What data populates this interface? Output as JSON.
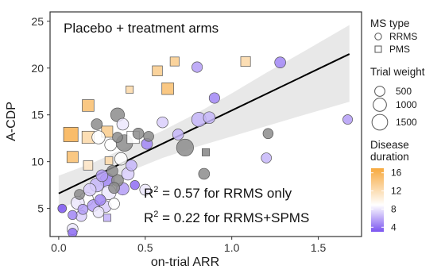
{
  "chart_data": {
    "type": "scatter",
    "title": "",
    "panel_label": "Placebo + treatment arms",
    "xlabel": "on-trial ARR",
    "ylabel": "A-CDP",
    "xlim": [
      -0.05,
      1.75
    ],
    "ylim": [
      2,
      26
    ],
    "x_ticks": [
      0.0,
      0.5,
      1.0,
      1.5
    ],
    "x_tick_labels": [
      "0.0",
      "0.5",
      "1.0",
      "1.5"
    ],
    "y_ticks": [
      5,
      10,
      15,
      20,
      25
    ],
    "y_tick_labels": [
      "5",
      "10",
      "15",
      "20",
      "25"
    ],
    "grid": false,
    "colors": {
      "duration_low": "#7b55f0",
      "duration_mid": "#ffffff",
      "duration_high": "#f7a93e",
      "no_duration": "#8c8c8c",
      "fit_line": "#000000",
      "confidence_band": "#e8e8e8"
    },
    "fit_line": {
      "x": [
        0.0,
        1.68
      ],
      "y": [
        6.6,
        21.5
      ]
    },
    "confidence_band": {
      "x": [
        0.0,
        0.2,
        0.4,
        0.6,
        0.8,
        1.0,
        1.2,
        1.4,
        1.68
      ],
      "upper": [
        8.5,
        9.9,
        11.6,
        13.3,
        15.2,
        17.3,
        19.5,
        21.6,
        24.6
      ],
      "lower": [
        4.7,
        7.0,
        8.9,
        10.4,
        11.6,
        12.7,
        13.8,
        14.9,
        16.4
      ]
    },
    "annotations": [
      {
        "prefix": "R",
        "sup": "2",
        "text": " = 0.57 for RRMS only"
      },
      {
        "prefix": "R",
        "sup": "2",
        "text": " = 0.22  for RRMS+SPMS"
      }
    ],
    "legend": {
      "placement": "right",
      "shape_title": "MS type",
      "shape_items": [
        {
          "label": "RRMS",
          "shape": "circle"
        },
        {
          "label": "PMS",
          "shape": "square"
        }
      ],
      "size_title": "Trial weight",
      "size_items": [
        {
          "label": "500",
          "weight": 500
        },
        {
          "label": "1000",
          "weight": 1000
        },
        {
          "label": "1500",
          "weight": 1500
        }
      ],
      "color_title": "Disease\nduration",
      "color_ticks": [
        {
          "label": "16",
          "value": 16
        },
        {
          "label": "12",
          "value": 12
        },
        {
          "label": "8",
          "value": 8
        },
        {
          "label": "4",
          "value": 4
        }
      ],
      "color_range": [
        3,
        17
      ]
    },
    "points": [
      {
        "x": 0.07,
        "y": 12.9,
        "shape": "square",
        "weight": 1500,
        "duration": 16
      },
      {
        "x": 0.08,
        "y": 10.5,
        "shape": "square",
        "weight": 800,
        "duration": 15
      },
      {
        "x": 0.17,
        "y": 16.0,
        "shape": "square",
        "weight": 900,
        "duration": 15
      },
      {
        "x": 0.17,
        "y": 12.6,
        "shape": "square",
        "weight": 1000,
        "duration": 13
      },
      {
        "x": 0.28,
        "y": 13.2,
        "shape": "square",
        "weight": 800,
        "duration": 14
      },
      {
        "x": 0.17,
        "y": 9.6,
        "shape": "square",
        "weight": 500,
        "duration": 12
      },
      {
        "x": 0.29,
        "y": 10.1,
        "shape": "square",
        "weight": 300,
        "duration": 13
      },
      {
        "x": 0.41,
        "y": 17.7,
        "shape": "square",
        "weight": 250,
        "duration": 13
      },
      {
        "x": 0.43,
        "y": 12.6,
        "shape": "square",
        "weight": 1000,
        "duration": 10
      },
      {
        "x": 0.57,
        "y": 19.7,
        "shape": "square",
        "weight": 600,
        "duration": 14
      },
      {
        "x": 0.63,
        "y": 17.8,
        "shape": "square",
        "weight": 900,
        "duration": 15
      },
      {
        "x": 0.67,
        "y": 20.7,
        "shape": "square",
        "weight": 450,
        "duration": 14
      },
      {
        "x": 1.08,
        "y": 20.7,
        "shape": "square",
        "weight": 550,
        "duration": 13
      },
      {
        "x": 0.85,
        "y": 11.0,
        "shape": "square",
        "weight": 250,
        "duration": null
      },
      {
        "x": 0.28,
        "y": 4.0,
        "shape": "square",
        "weight": 250,
        "duration": 7
      },
      {
        "x": 0.23,
        "y": 12.6,
        "shape": "circle",
        "weight": 800,
        "duration": 10
      },
      {
        "x": 0.22,
        "y": 14.0,
        "shape": "circle",
        "weight": 500,
        "duration": null
      },
      {
        "x": 0.34,
        "y": 15.0,
        "shape": "circle",
        "weight": 900,
        "duration": null
      },
      {
        "x": 0.37,
        "y": 14.0,
        "shape": "circle",
        "weight": 600,
        "duration": 9
      },
      {
        "x": 0.38,
        "y": 12.0,
        "shape": "circle",
        "weight": 1400,
        "duration": null
      },
      {
        "x": 0.34,
        "y": 12.6,
        "shape": "circle",
        "weight": 400,
        "duration": null
      },
      {
        "x": 0.3,
        "y": 11.8,
        "shape": "circle",
        "weight": 600,
        "duration": 10
      },
      {
        "x": 0.46,
        "y": 13.0,
        "shape": "circle",
        "weight": 500,
        "duration": null
      },
      {
        "x": 0.52,
        "y": 12.7,
        "shape": "circle",
        "weight": 400,
        "duration": null
      },
      {
        "x": 0.6,
        "y": 14.2,
        "shape": "circle",
        "weight": 500,
        "duration": 8
      },
      {
        "x": 0.73,
        "y": 11.5,
        "shape": "circle",
        "weight": 1500,
        "duration": null
      },
      {
        "x": 0.81,
        "y": 14.5,
        "shape": "circle",
        "weight": 1000,
        "duration": 7
      },
      {
        "x": 0.87,
        "y": 14.7,
        "shape": "circle",
        "weight": 600,
        "duration": 7
      },
      {
        "x": 0.69,
        "y": 12.9,
        "shape": "circle",
        "weight": 500,
        "duration": 7
      },
      {
        "x": 0.8,
        "y": 20.1,
        "shape": "circle",
        "weight": 450,
        "duration": 6
      },
      {
        "x": 0.9,
        "y": 16.8,
        "shape": "circle",
        "weight": 450,
        "duration": 5
      },
      {
        "x": 1.21,
        "y": 13.0,
        "shape": "circle",
        "weight": 400,
        "duration": null
      },
      {
        "x": 1.28,
        "y": 20.6,
        "shape": "circle",
        "weight": 500,
        "duration": 5
      },
      {
        "x": 1.2,
        "y": 10.4,
        "shape": "circle",
        "weight": 400,
        "duration": 7
      },
      {
        "x": 1.67,
        "y": 14.5,
        "shape": "circle",
        "weight": 350,
        "duration": 6
      },
      {
        "x": 0.51,
        "y": 11.9,
        "shape": "circle",
        "weight": 500,
        "duration": 5
      },
      {
        "x": 0.36,
        "y": 10.3,
        "shape": "circle",
        "weight": 700,
        "duration": 10
      },
      {
        "x": 0.34,
        "y": 8.0,
        "shape": "circle",
        "weight": 600,
        "duration": null
      },
      {
        "x": 0.4,
        "y": 8.7,
        "shape": "circle",
        "weight": 700,
        "duration": 8
      },
      {
        "x": 0.31,
        "y": 9.0,
        "shape": "circle",
        "weight": 500,
        "duration": null
      },
      {
        "x": 0.42,
        "y": 9.6,
        "shape": "circle",
        "weight": 500,
        "duration": 7
      },
      {
        "x": 0.25,
        "y": 8.5,
        "shape": "circle",
        "weight": 600,
        "duration": 6
      },
      {
        "x": 0.28,
        "y": 8.0,
        "shape": "circle",
        "weight": 1000,
        "duration": 5
      },
      {
        "x": 0.22,
        "y": 7.5,
        "shape": "circle",
        "weight": 900,
        "duration": 7
      },
      {
        "x": 0.18,
        "y": 7.0,
        "shape": "circle",
        "weight": 700,
        "duration": 8
      },
      {
        "x": 0.12,
        "y": 6.5,
        "shape": "circle",
        "weight": 400,
        "duration": null
      },
      {
        "x": 0.11,
        "y": 5.6,
        "shape": "circle",
        "weight": 800,
        "duration": 9
      },
      {
        "x": 0.16,
        "y": 6.0,
        "shape": "circle",
        "weight": 900,
        "duration": 10
      },
      {
        "x": 0.29,
        "y": 6.7,
        "shape": "circle",
        "weight": 1000,
        "duration": 9
      },
      {
        "x": 0.32,
        "y": 7.2,
        "shape": "circle",
        "weight": 500,
        "duration": null
      },
      {
        "x": 0.37,
        "y": 7.1,
        "shape": "circle",
        "weight": 700,
        "duration": 6
      },
      {
        "x": 0.24,
        "y": 5.9,
        "shape": "circle",
        "weight": 500,
        "duration": 5
      },
      {
        "x": 0.2,
        "y": 5.3,
        "shape": "circle",
        "weight": 600,
        "duration": 6
      },
      {
        "x": 0.27,
        "y": 5.2,
        "shape": "circle",
        "weight": 600,
        "duration": 8
      },
      {
        "x": 0.32,
        "y": 5.5,
        "shape": "circle",
        "weight": 500,
        "duration": 10
      },
      {
        "x": 0.14,
        "y": 4.9,
        "shape": "circle",
        "weight": 400,
        "duration": 6
      },
      {
        "x": 0.23,
        "y": 4.6,
        "shape": "circle",
        "weight": 500,
        "duration": 9
      },
      {
        "x": 0.08,
        "y": 4.3,
        "shape": "circle",
        "weight": 300,
        "duration": 5
      },
      {
        "x": 0.13,
        "y": 4.2,
        "shape": "circle",
        "weight": 500,
        "duration": 8
      },
      {
        "x": 0.08,
        "y": 2.8,
        "shape": "circle",
        "weight": 500,
        "duration": 9
      },
      {
        "x": 0.08,
        "y": 2.4,
        "shape": "circle",
        "weight": 300,
        "duration": 4
      },
      {
        "x": 0.02,
        "y": 5.0,
        "shape": "circle",
        "weight": 250,
        "duration": 3
      },
      {
        "x": 0.84,
        "y": 8.7,
        "shape": "circle",
        "weight": 500,
        "duration": null
      },
      {
        "x": 0.5,
        "y": 7.0,
        "shape": "circle",
        "weight": 500,
        "duration": 9
      },
      {
        "x": 0.44,
        "y": 7.5,
        "shape": "circle",
        "weight": 300,
        "duration": 4
      }
    ]
  }
}
